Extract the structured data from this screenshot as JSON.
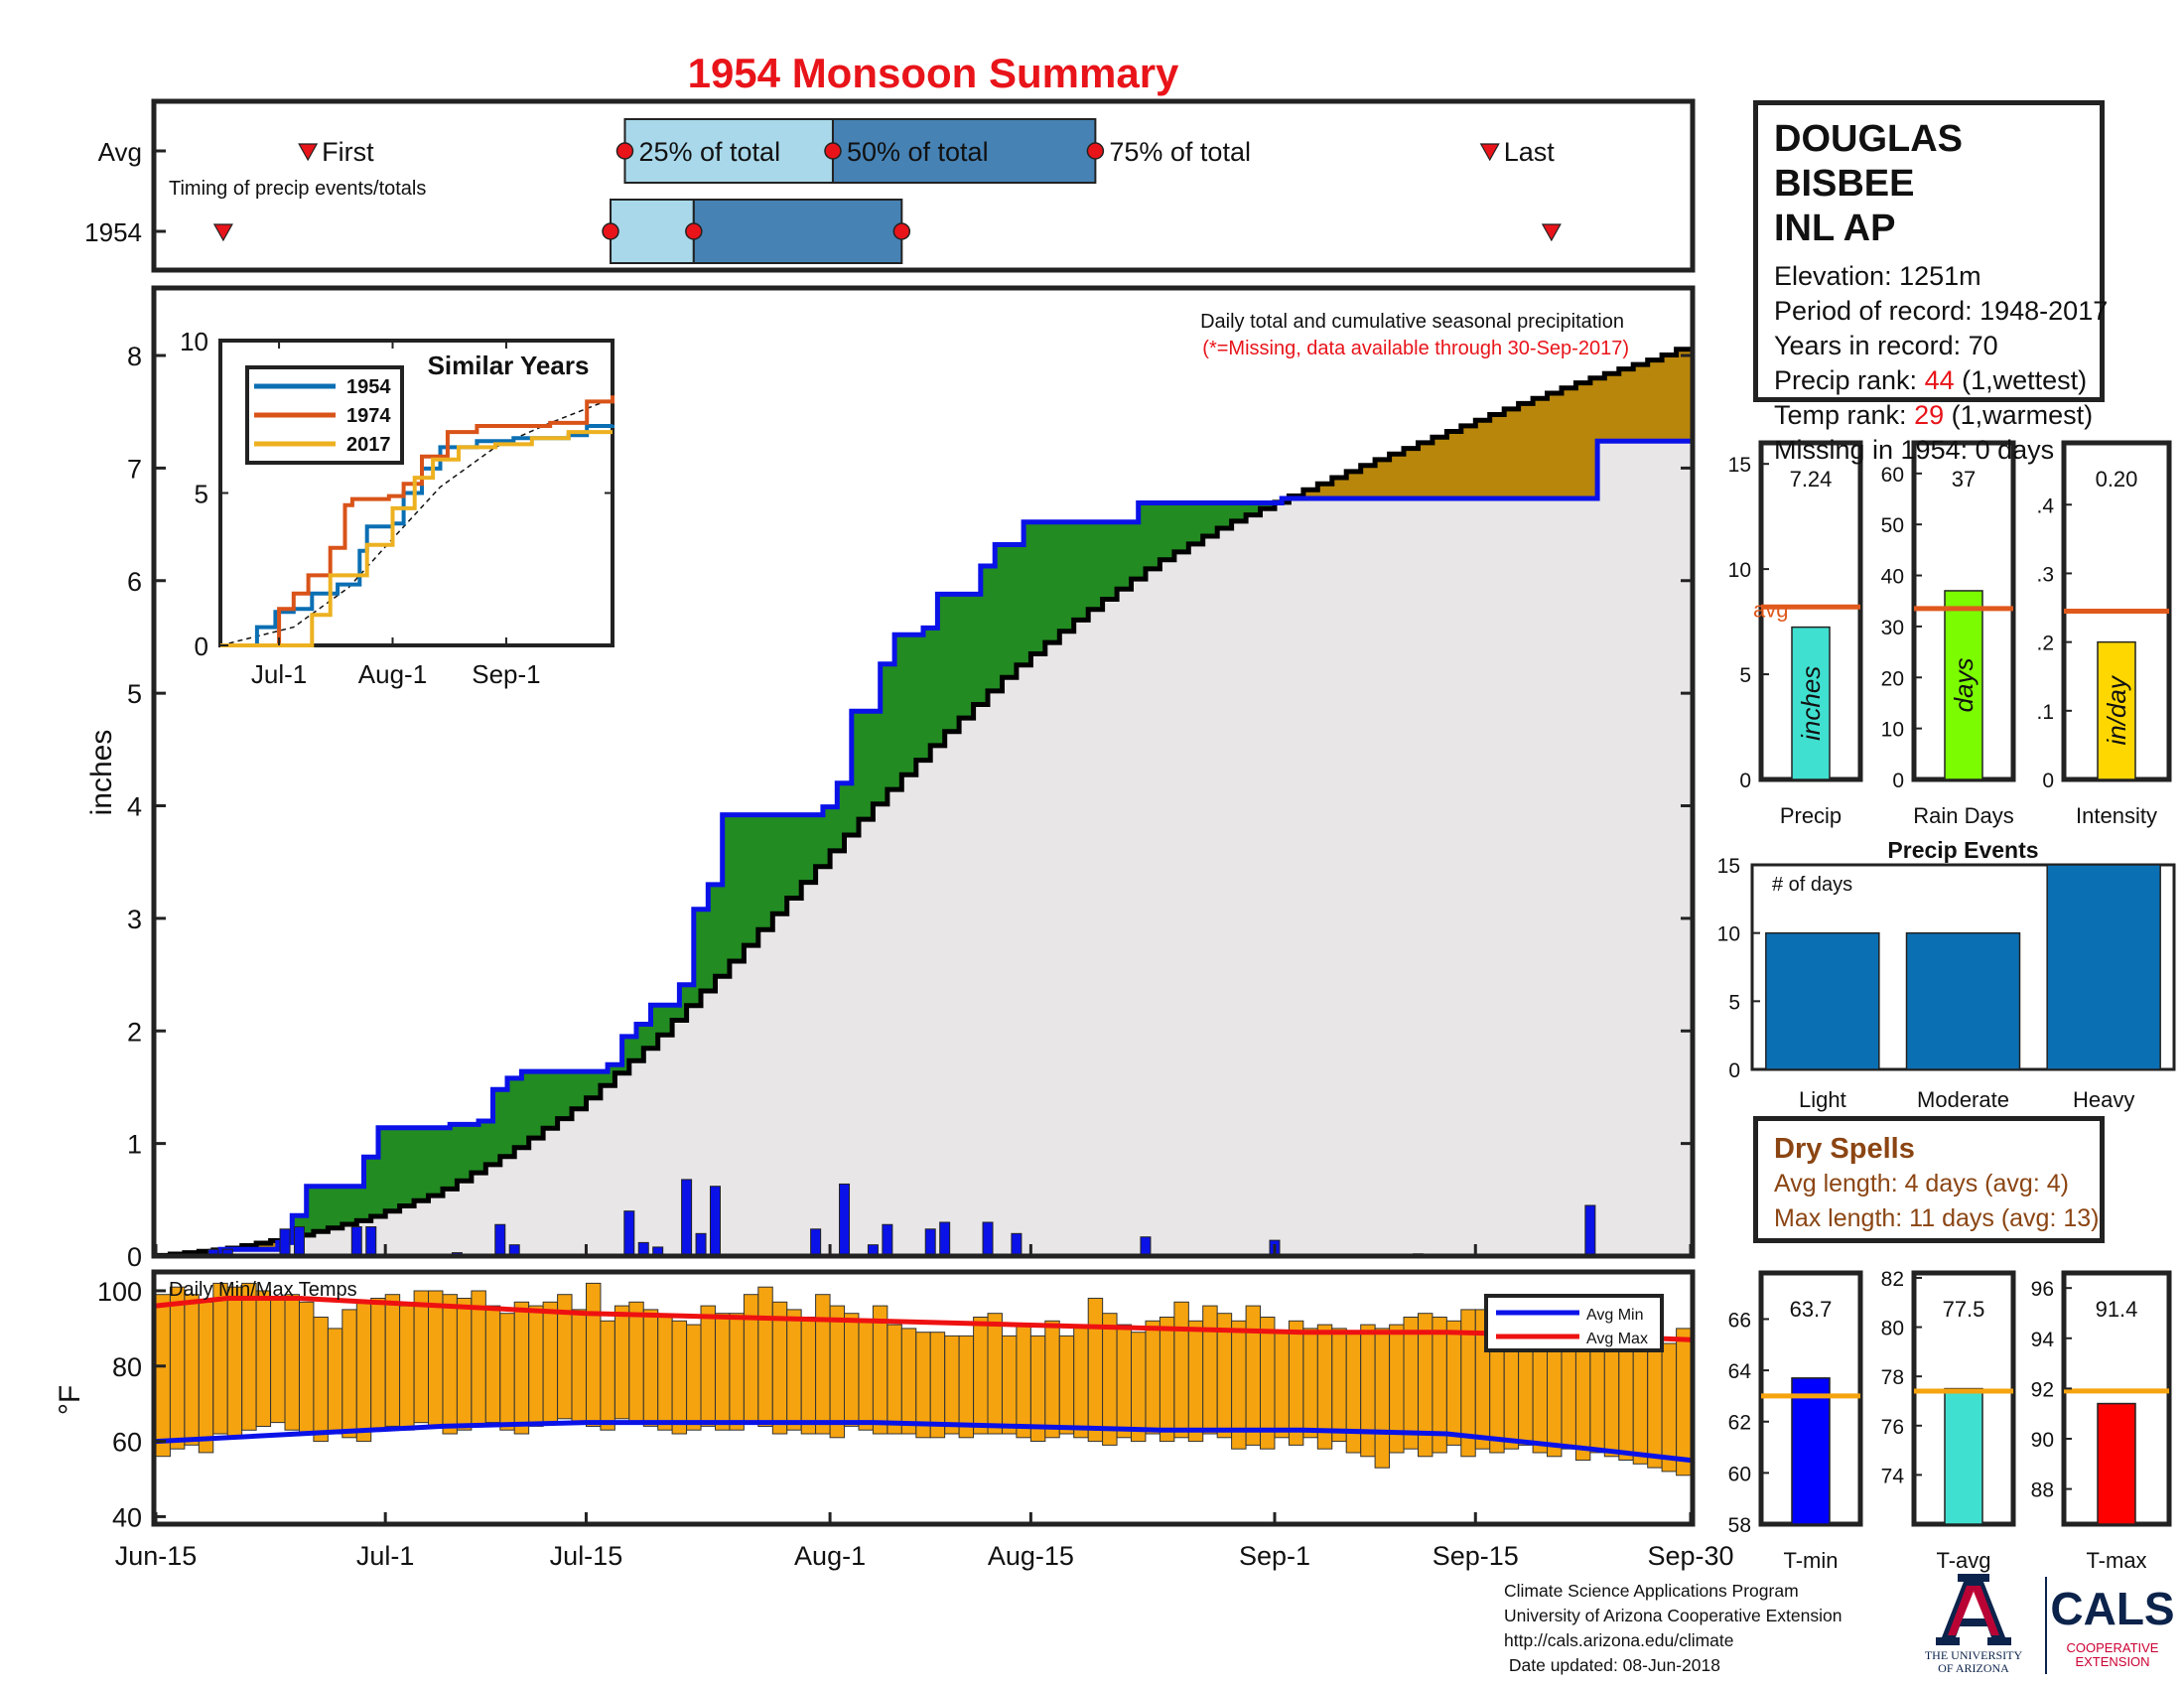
{
  "page_title": "1954 Monsoon Summary",
  "station": {
    "name_line1": "DOUGLAS BISBEE",
    "name_line2": "INL AP",
    "elevation": "Elevation: 1251m",
    "period": "Period of record: 1948-2017",
    "years": "Years in record: 70",
    "precip_rank_label": "Precip rank: ",
    "precip_rank_value": "44",
    "precip_rank_note": " (1,wettest)",
    "temp_rank_label": "Temp rank: ",
    "temp_rank_value": "29",
    "temp_rank_note": " (1,warmest)",
    "missing": "Missing in 1954: 0 days"
  },
  "dry_spells": {
    "title": "Dry Spells",
    "avg": "Avg length: 4 days (avg: 4)",
    "max": "Max length: 11 days (avg: 13)"
  },
  "credits": {
    "line1": "Climate Science Applications Program",
    "line2": "University of Arizona Cooperative Extension",
    "line3": "http://cals.arizona.edu/climate",
    "line4": " Date updated: 08-Jun-2018"
  },
  "logos": {
    "ua_line1": "THE UNIVERSITY",
    "ua_line2": "OF ARIZONA",
    "cals_title": "CALS",
    "cals_line1": "COOPERATIVE",
    "cals_line2": "EXTENSION"
  },
  "colors": {
    "title_red": "#e8141a",
    "cum_above_green": "#228b22",
    "cum_below_gold": "#b8860b",
    "fill_gray": "#e8e6e6",
    "daily_bar_blue": "#0a12e8",
    "temp_bar_orange": "#f5a30f",
    "avg_line_orange": "#e0591c"
  },
  "chart_data": [
    {
      "id": "timing",
      "type": "table",
      "row_labels": [
        "Avg",
        "1954"
      ],
      "subtitle": "Timing of precip events/totals",
      "labels": {
        "first": "First",
        "last": "Last",
        "p25": "25% of total",
        "p50": "50% of total",
        "p75": "75% of total"
      },
      "day_domain": [
        0,
        107
      ],
      "avg": {
        "first": 10.6,
        "p25": 32.7,
        "p50": 47.2,
        "p75": 65.5,
        "last": 93.0
      },
      "y1954": {
        "first": 4.7,
        "p25": 31.7,
        "p50": 37.5,
        "p75": 52.0,
        "last": 97.3
      }
    },
    {
      "id": "precip-main",
      "type": "area",
      "title": "Daily total and cumulative seasonal precipitation",
      "note": "(*=Missing, data available through 30-Sep-2017)",
      "ylabel": "inches",
      "ylim": [
        0,
        8.6
      ],
      "yticks": [
        0,
        1,
        2,
        3,
        4,
        5,
        6,
        7,
        8
      ],
      "x_ticks": [
        "Jun-15",
        "Jul-1",
        "Jul-15",
        "Aug-1",
        "Aug-15",
        "Sep-1",
        "Sep-15",
        "Sep-30"
      ],
      "x_tick_days": [
        0,
        16,
        30,
        47,
        61,
        78,
        92,
        107
      ],
      "series_1954_cumulative_steps": [
        [
          0,
          0.0
        ],
        [
          4.5,
          0.06
        ],
        [
          8.5,
          0.12
        ],
        [
          9.5,
          0.36
        ],
        [
          10.5,
          0.62
        ],
        [
          14.5,
          0.88
        ],
        [
          15.5,
          1.14
        ],
        [
          20.5,
          1.17
        ],
        [
          22.5,
          1.2
        ],
        [
          23.5,
          1.48
        ],
        [
          24.5,
          1.58
        ],
        [
          25.5,
          1.64
        ],
        [
          31.5,
          1.7
        ],
        [
          32.5,
          1.95
        ],
        [
          33.5,
          2.06
        ],
        [
          34.5,
          2.23
        ],
        [
          36.5,
          2.41
        ],
        [
          37.5,
          3.08
        ],
        [
          38.5,
          3.3
        ],
        [
          39.5,
          3.92
        ],
        [
          46.5,
          3.99
        ],
        [
          47.5,
          4.2
        ],
        [
          48.5,
          4.84
        ],
        [
          50.5,
          5.26
        ],
        [
          51.5,
          5.52
        ],
        [
          53.5,
          5.58
        ],
        [
          54.5,
          5.88
        ],
        [
          57.5,
          6.13
        ],
        [
          58.5,
          6.32
        ],
        [
          60.5,
          6.52
        ],
        [
          68.5,
          6.69
        ],
        [
          78.5,
          6.73
        ],
        [
          100.5,
          7.24
        ],
        [
          107,
          7.24
        ]
      ],
      "avg_cumulative": [
        [
          0,
          0.0
        ],
        [
          5,
          0.06
        ],
        [
          10,
          0.17
        ],
        [
          15,
          0.33
        ],
        [
          20,
          0.56
        ],
        [
          25,
          0.92
        ],
        [
          30,
          1.35
        ],
        [
          35,
          1.9
        ],
        [
          40,
          2.55
        ],
        [
          45,
          3.25
        ],
        [
          50,
          3.95
        ],
        [
          55,
          4.6
        ],
        [
          60,
          5.2
        ],
        [
          65,
          5.7
        ],
        [
          70,
          6.15
        ],
        [
          75,
          6.5
        ],
        [
          80,
          6.78
        ],
        [
          85,
          7.05
        ],
        [
          90,
          7.3
        ],
        [
          95,
          7.55
        ],
        [
          100,
          7.78
        ],
        [
          105,
          7.98
        ],
        [
          107,
          8.08
        ]
      ],
      "daily_1954": [
        [
          4,
          0.06
        ],
        [
          5,
          0.06
        ],
        [
          9,
          0.24
        ],
        [
          10,
          0.26
        ],
        [
          14,
          0.26
        ],
        [
          15,
          0.26
        ],
        [
          21,
          0.03
        ],
        [
          24,
          0.28
        ],
        [
          25,
          0.1
        ],
        [
          33,
          0.4
        ],
        [
          34,
          0.12
        ],
        [
          35,
          0.08
        ],
        [
          37,
          0.68
        ],
        [
          38,
          0.2
        ],
        [
          39,
          0.62
        ],
        [
          46,
          0.24
        ],
        [
          48,
          0.64
        ],
        [
          50,
          0.1
        ],
        [
          51,
          0.28
        ],
        [
          54,
          0.24
        ],
        [
          55,
          0.3
        ],
        [
          58,
          0.3
        ],
        [
          60,
          0.2
        ],
        [
          69,
          0.17
        ],
        [
          78,
          0.14
        ],
        [
          88,
          0.02
        ],
        [
          100,
          0.45
        ]
      ]
    },
    {
      "id": "similar-years",
      "type": "line",
      "title": "Similar Years",
      "ylim": [
        0,
        10
      ],
      "yticks": [
        0,
        5,
        10
      ],
      "x_ticks": [
        "Jul-1",
        "Aug-1",
        "Sep-1"
      ],
      "x_tick_days": [
        16,
        47,
        78
      ],
      "series": [
        {
          "name": "1954",
          "color": "#0b6fb3",
          "points": [
            [
              0,
              0.0
            ],
            [
              10,
              0.6
            ],
            [
              15,
              1.1
            ],
            [
              20,
              1.2
            ],
            [
              25,
              1.7
            ],
            [
              32,
              2.0
            ],
            [
              38,
              3.1
            ],
            [
              40,
              3.9
            ],
            [
              47,
              4.0
            ],
            [
              50,
              5.0
            ],
            [
              55,
              5.8
            ],
            [
              60,
              6.5
            ],
            [
              70,
              6.7
            ],
            [
              80,
              6.8
            ],
            [
              95,
              6.9
            ],
            [
              100,
              7.2
            ],
            [
              107,
              7.24
            ]
          ]
        },
        {
          "name": "1974",
          "color": "#d95319",
          "points": [
            [
              0,
              0.0
            ],
            [
              16,
              1.2
            ],
            [
              20,
              1.7
            ],
            [
              24,
              2.3
            ],
            [
              30,
              3.2
            ],
            [
              34,
              4.6
            ],
            [
              36,
              4.8
            ],
            [
              46,
              4.9
            ],
            [
              50,
              5.3
            ],
            [
              55,
              6.2
            ],
            [
              62,
              7.0
            ],
            [
              70,
              7.2
            ],
            [
              80,
              7.2
            ],
            [
              90,
              7.3
            ],
            [
              100,
              8.0
            ],
            [
              107,
              8.2
            ]
          ]
        },
        {
          "name": "2017",
          "color": "#edb120",
          "points": [
            [
              0,
              0.0
            ],
            [
              22,
              0.0
            ],
            [
              25,
              1.0
            ],
            [
              30,
              2.3
            ],
            [
              40,
              3.3
            ],
            [
              47,
              4.5
            ],
            [
              53,
              5.5
            ],
            [
              58,
              6.1
            ],
            [
              65,
              6.5
            ],
            [
              75,
              6.6
            ],
            [
              85,
              6.8
            ],
            [
              95,
              7.0
            ],
            [
              107,
              7.0
            ]
          ]
        }
      ],
      "avg_dashed": [
        [
          0,
          0.0
        ],
        [
          20,
          0.6
        ],
        [
          35,
          1.9
        ],
        [
          47,
          3.5
        ],
        [
          60,
          5.2
        ],
        [
          75,
          6.5
        ],
        [
          90,
          7.3
        ],
        [
          107,
          8.1
        ]
      ]
    },
    {
      "id": "precip-stat",
      "type": "bar",
      "categories": [
        "Precip"
      ],
      "values": [
        7.24
      ],
      "value_label": "7.24",
      "avg": 8.2,
      "avg_label": "avg",
      "bar_label": "inches",
      "ylim": [
        0,
        16
      ],
      "yticks": [
        0,
        5,
        10,
        15
      ],
      "color": "#40e0d0"
    },
    {
      "id": "raindays-stat",
      "type": "bar",
      "categories": [
        "Rain Days"
      ],
      "values": [
        37
      ],
      "value_label": "37",
      "avg": 33.5,
      "bar_label": "days",
      "ylim": [
        0,
        66
      ],
      "yticks": [
        0,
        10,
        20,
        30,
        40,
        50,
        60
      ],
      "color": "#7cfc00"
    },
    {
      "id": "intensity-stat",
      "type": "bar",
      "categories": [
        "Intensity"
      ],
      "values": [
        0.2
      ],
      "value_label": "0.20",
      "avg": 0.245,
      "bar_label": "in/day",
      "ylim": [
        0,
        0.49
      ],
      "yticks": [
        0,
        0.1,
        0.2,
        0.3,
        0.4
      ],
      "color": "#ffd700"
    },
    {
      "id": "precip-events",
      "type": "bar",
      "title": "Precip Events",
      "annotation": "# of days",
      "categories": [
        "Light",
        "Moderate",
        "Heavy"
      ],
      "values": [
        10,
        10,
        15
      ],
      "ylim": [
        0,
        15
      ],
      "yticks": [
        0,
        5,
        10,
        15
      ],
      "color": "#0b6fb3"
    },
    {
      "id": "temps",
      "type": "bar",
      "title": "Daily Min/Max Temps",
      "ylabel": "°F",
      "ylim": [
        38,
        105
      ],
      "yticks": [
        40,
        60,
        80,
        100
      ],
      "legend": [
        "Avg Min",
        "Avg Max"
      ],
      "legend_position": "top-right",
      "x_ticks": [
        "Jun-15",
        "Jul-1",
        "Jul-15",
        "Aug-1",
        "Aug-15",
        "Sep-1",
        "Sep-15",
        "Sep-30"
      ],
      "x_tick_days": [
        0,
        16,
        30,
        47,
        61,
        78,
        92,
        107
      ],
      "daily_max": [
        99,
        101,
        99,
        97,
        102,
        101,
        102,
        100,
        98,
        99,
        97,
        93,
        90,
        95,
        97,
        98,
        99,
        96,
        100,
        100,
        99,
        98,
        100,
        96,
        94,
        97,
        96,
        97,
        99,
        95,
        102,
        92,
        96,
        97,
        95,
        93,
        92,
        91,
        96,
        94,
        94,
        99,
        101,
        97,
        95,
        93,
        99,
        96,
        94,
        92,
        96,
        91,
        90,
        89,
        89,
        88,
        88,
        93,
        94,
        88,
        91,
        88,
        92,
        88,
        91,
        98,
        94,
        91,
        89,
        92,
        93,
        97,
        92,
        96,
        94,
        92,
        96,
        93,
        89,
        92,
        90,
        91,
        90,
        89,
        91,
        90,
        91,
        93,
        94,
        93,
        92,
        95,
        95,
        96,
        95,
        95,
        95,
        95,
        92,
        91,
        88,
        89,
        87,
        87,
        85,
        86,
        90
      ],
      "daily_min": [
        56,
        58,
        59,
        57,
        62,
        61,
        63,
        64,
        65,
        63,
        62,
        60,
        62,
        61,
        60,
        63,
        64,
        63,
        65,
        64,
        62,
        63,
        64,
        65,
        63,
        62,
        64,
        65,
        66,
        65,
        64,
        63,
        66,
        65,
        64,
        63,
        62,
        63,
        64,
        63,
        63,
        65,
        64,
        62,
        63,
        62,
        62,
        61,
        64,
        63,
        62,
        62,
        62,
        61,
        61,
        62,
        61,
        62,
        62,
        62,
        61,
        60,
        61,
        62,
        61,
        60,
        59,
        61,
        60,
        62,
        60,
        61,
        60,
        62,
        61,
        58,
        59,
        58,
        61,
        59,
        61,
        58,
        60,
        57,
        56,
        53,
        57,
        58,
        56,
        57,
        59,
        56,
        58,
        57,
        58,
        59,
        57,
        56,
        58,
        55,
        57,
        56,
        55,
        54,
        53,
        52,
        51
      ],
      "avg_max": [
        [
          0,
          96
        ],
        [
          5,
          98
        ],
        [
          10,
          98
        ],
        [
          20,
          96
        ],
        [
          30,
          94
        ],
        [
          40,
          93
        ],
        [
          50,
          92
        ],
        [
          60,
          91
        ],
        [
          70,
          90
        ],
        [
          80,
          89
        ],
        [
          90,
          89
        ],
        [
          100,
          88
        ],
        [
          107,
          87
        ]
      ],
      "avg_min": [
        [
          0,
          60
        ],
        [
          10,
          62
        ],
        [
          20,
          64
        ],
        [
          30,
          65
        ],
        [
          40,
          65
        ],
        [
          50,
          65
        ],
        [
          60,
          64
        ],
        [
          70,
          63
        ],
        [
          80,
          63
        ],
        [
          90,
          62
        ],
        [
          100,
          58
        ],
        [
          107,
          55
        ]
      ]
    },
    {
      "id": "tmin-stat",
      "type": "bar",
      "categories": [
        "T-min"
      ],
      "values": [
        63.7
      ],
      "value_label": "63.7",
      "avg": 63.0,
      "ylim": [
        58,
        67.8
      ],
      "yticks": [
        58,
        60,
        62,
        64,
        66
      ],
      "color": "#0000ff"
    },
    {
      "id": "tavg-stat",
      "type": "bar",
      "categories": [
        "T-avg"
      ],
      "values": [
        77.5
      ],
      "value_label": "77.5",
      "avg": 77.4,
      "ylim": [
        72.0,
        82.2
      ],
      "yticks": [
        74,
        76,
        78,
        80,
        82
      ],
      "color": "#40e0d0"
    },
    {
      "id": "tmax-stat",
      "type": "bar",
      "categories": [
        "T-max"
      ],
      "values": [
        91.4
      ],
      "value_label": "91.4",
      "avg": 91.9,
      "ylim": [
        86.6,
        96.6
      ],
      "yticks": [
        88,
        90,
        92,
        94,
        96
      ],
      "color": "#ff0000"
    }
  ]
}
